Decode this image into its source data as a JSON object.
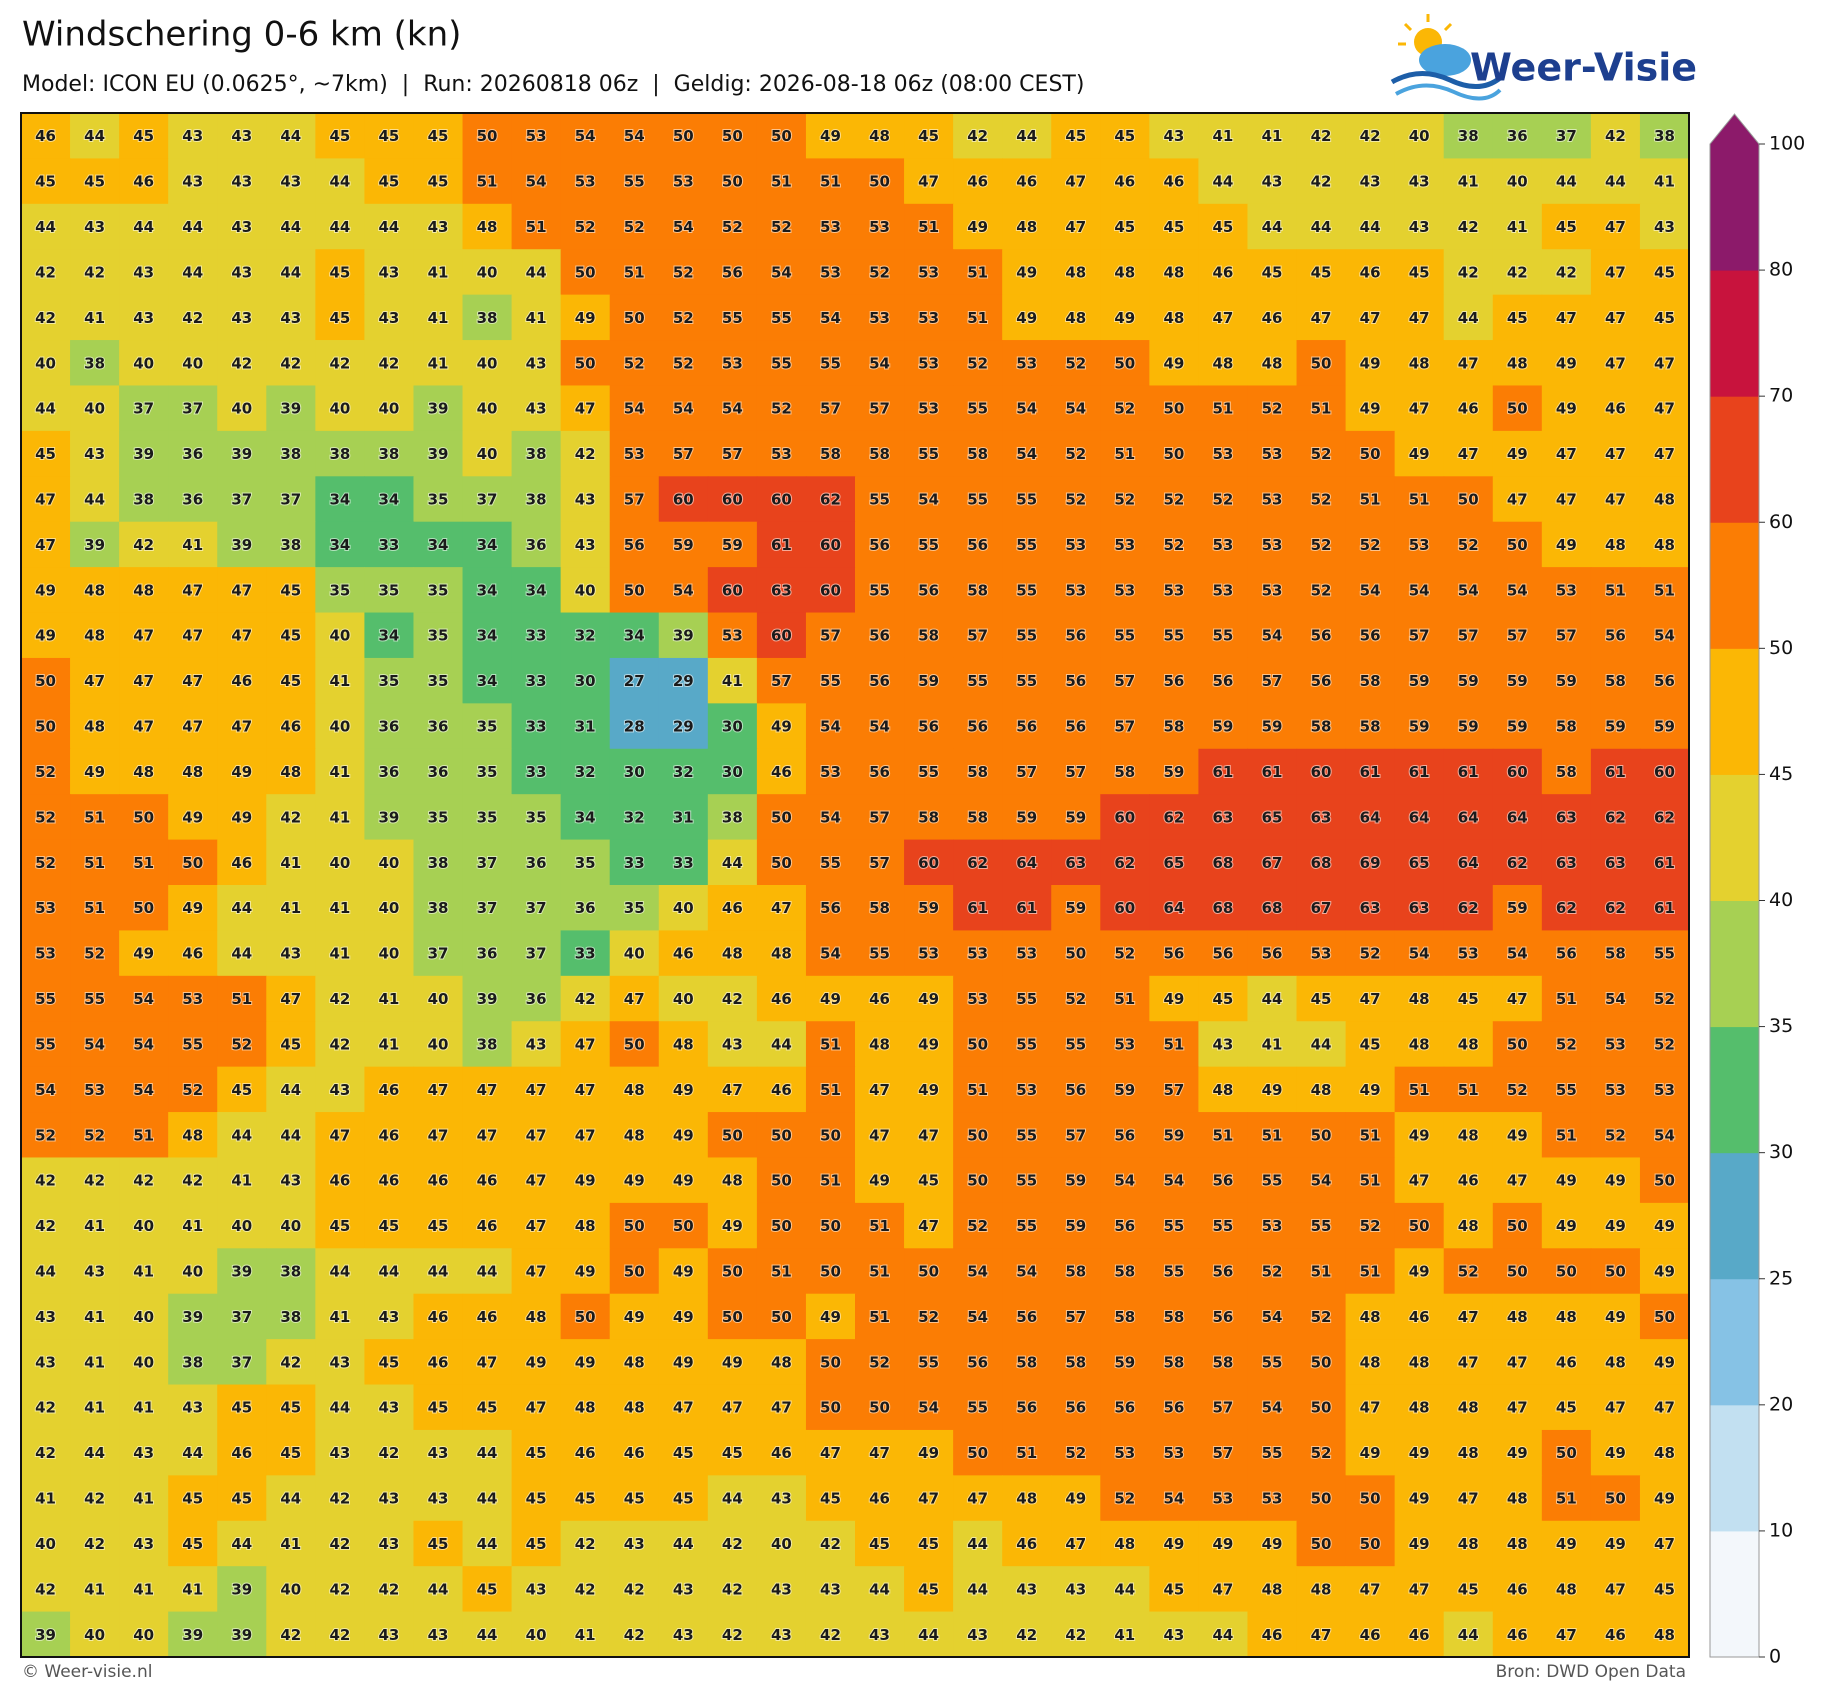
{
  "header": {
    "title": "Windschering 0-6 km (kn)",
    "subtitle": "Model: ICON EU (0.0625°, ~7km)  |  Run: 20260818 06z  |  Geldig: 2026-08-18 06z (08:00 CEST)",
    "logo": "Weer-Visie"
  },
  "map": {
    "values": [
      [
        46,
        44,
        45,
        43,
        43,
        44,
        45,
        45,
        45,
        50,
        53,
        54,
        54,
        50,
        50,
        50,
        49,
        48,
        45,
        42,
        44,
        45,
        45,
        43,
        41,
        41,
        42,
        42,
        40,
        38,
        36,
        37,
        42,
        38
      ],
      [
        45,
        45,
        46,
        43,
        43,
        43,
        44,
        45,
        45,
        51,
        54,
        53,
        55,
        53,
        50,
        51,
        51,
        50,
        47,
        46,
        46,
        47,
        46,
        46,
        44,
        43,
        42,
        43,
        43,
        41,
        40,
        44,
        44,
        41
      ],
      [
        44,
        43,
        44,
        44,
        43,
        44,
        44,
        44,
        43,
        48,
        51,
        52,
        52,
        54,
        52,
        52,
        53,
        53,
        51,
        49,
        48,
        47,
        45,
        45,
        45,
        44,
        44,
        44,
        43,
        42,
        41,
        45,
        47,
        43
      ],
      [
        42,
        42,
        43,
        44,
        43,
        44,
        45,
        43,
        41,
        40,
        44,
        50,
        51,
        52,
        56,
        54,
        53,
        52,
        53,
        51,
        49,
        48,
        48,
        48,
        46,
        45,
        45,
        46,
        45,
        42,
        42,
        42,
        47,
        45
      ],
      [
        42,
        41,
        43,
        42,
        43,
        43,
        45,
        43,
        41,
        38,
        41,
        49,
        50,
        52,
        55,
        55,
        54,
        53,
        53,
        51,
        49,
        48,
        49,
        48,
        47,
        46,
        47,
        47,
        47,
        44,
        45,
        47,
        47,
        45
      ],
      [
        40,
        38,
        40,
        40,
        42,
        42,
        42,
        42,
        41,
        40,
        43,
        50,
        52,
        52,
        53,
        55,
        55,
        54,
        53,
        52,
        53,
        52,
        50,
        49,
        48,
        48,
        50,
        49,
        48,
        47,
        48,
        49,
        47,
        47
      ],
      [
        44,
        40,
        37,
        37,
        40,
        39,
        40,
        40,
        39,
        40,
        43,
        47,
        54,
        54,
        54,
        52,
        57,
        57,
        53,
        55,
        54,
        54,
        52,
        50,
        51,
        52,
        51,
        49,
        47,
        46,
        50,
        49,
        46,
        47
      ],
      [
        45,
        43,
        39,
        36,
        39,
        38,
        38,
        38,
        39,
        40,
        38,
        42,
        53,
        57,
        57,
        53,
        58,
        58,
        55,
        58,
        54,
        52,
        51,
        50,
        53,
        53,
        52,
        50,
        49,
        47,
        49,
        47,
        47,
        47
      ],
      [
        47,
        44,
        38,
        36,
        37,
        37,
        34,
        34,
        35,
        37,
        38,
        43,
        57,
        60,
        60,
        60,
        62,
        55,
        54,
        55,
        55,
        52,
        52,
        52,
        52,
        53,
        52,
        51,
        51,
        50,
        47,
        47,
        47,
        48
      ],
      [
        47,
        39,
        42,
        41,
        39,
        38,
        34,
        33,
        34,
        34,
        36,
        43,
        56,
        59,
        59,
        61,
        60,
        56,
        55,
        56,
        55,
        53,
        53,
        52,
        53,
        53,
        52,
        52,
        53,
        52,
        50,
        49,
        48,
        48
      ],
      [
        49,
        48,
        48,
        47,
        47,
        45,
        35,
        35,
        35,
        34,
        34,
        40,
        50,
        54,
        60,
        63,
        60,
        55,
        56,
        58,
        55,
        53,
        53,
        53,
        53,
        53,
        52,
        54,
        54,
        54,
        54,
        53,
        51,
        51
      ],
      [
        49,
        48,
        47,
        47,
        47,
        45,
        40,
        34,
        35,
        34,
        33,
        32,
        34,
        39,
        53,
        60,
        57,
        56,
        58,
        57,
        55,
        56,
        55,
        55,
        55,
        54,
        56,
        56,
        57,
        57,
        57,
        57,
        56,
        54
      ],
      [
        50,
        47,
        47,
        47,
        46,
        45,
        41,
        35,
        35,
        34,
        33,
        30,
        27,
        29,
        41,
        57,
        55,
        56,
        59,
        55,
        55,
        56,
        57,
        56,
        56,
        57,
        56,
        58,
        59,
        59,
        59,
        59,
        58,
        56
      ],
      [
        50,
        48,
        47,
        47,
        47,
        46,
        40,
        36,
        36,
        35,
        33,
        31,
        28,
        29,
        30,
        49,
        54,
        54,
        56,
        56,
        56,
        56,
        57,
        58,
        59,
        59,
        58,
        58,
        59,
        59,
        59,
        58,
        59,
        59
      ],
      [
        52,
        49,
        48,
        48,
        49,
        48,
        41,
        36,
        36,
        35,
        33,
        32,
        30,
        32,
        30,
        46,
        53,
        56,
        55,
        58,
        57,
        57,
        58,
        59,
        61,
        61,
        60,
        61,
        61,
        61,
        60,
        58,
        61,
        60
      ],
      [
        52,
        51,
        50,
        49,
        49,
        42,
        41,
        39,
        35,
        35,
        35,
        34,
        32,
        31,
        38,
        50,
        54,
        57,
        58,
        58,
        59,
        59,
        60,
        62,
        63,
        65,
        63,
        64,
        64,
        64,
        64,
        63,
        62,
        62
      ],
      [
        52,
        51,
        51,
        50,
        46,
        41,
        40,
        40,
        38,
        37,
        36,
        35,
        33,
        33,
        44,
        50,
        55,
        57,
        60,
        62,
        64,
        63,
        62,
        65,
        68,
        67,
        68,
        69,
        65,
        64,
        62,
        63,
        63,
        61
      ],
      [
        53,
        51,
        50,
        49,
        44,
        41,
        41,
        40,
        38,
        37,
        37,
        36,
        35,
        40,
        46,
        47,
        56,
        58,
        59,
        61,
        61,
        59,
        60,
        64,
        68,
        68,
        67,
        63,
        63,
        62,
        59,
        62,
        62,
        61
      ],
      [
        53,
        52,
        49,
        46,
        44,
        43,
        41,
        40,
        37,
        36,
        37,
        33,
        40,
        46,
        48,
        48,
        54,
        55,
        53,
        53,
        53,
        50,
        52,
        56,
        56,
        56,
        53,
        52,
        54,
        53,
        54,
        56,
        58,
        55
      ],
      [
        55,
        55,
        54,
        53,
        51,
        47,
        42,
        41,
        40,
        39,
        36,
        42,
        47,
        40,
        42,
        46,
        49,
        46,
        49,
        53,
        55,
        52,
        51,
        49,
        45,
        44,
        45,
        47,
        48,
        45,
        47,
        51,
        54,
        52
      ],
      [
        55,
        54,
        54,
        55,
        52,
        45,
        42,
        41,
        40,
        38,
        43,
        47,
        50,
        48,
        43,
        44,
        51,
        48,
        49,
        50,
        55,
        55,
        53,
        51,
        43,
        41,
        44,
        45,
        48,
        48,
        50,
        52,
        53,
        52
      ],
      [
        54,
        53,
        54,
        52,
        45,
        44,
        43,
        46,
        47,
        47,
        47,
        47,
        48,
        49,
        47,
        46,
        51,
        47,
        49,
        51,
        53,
        56,
        59,
        57,
        48,
        49,
        48,
        49,
        51,
        51,
        52,
        55,
        53,
        53
      ],
      [
        52,
        52,
        51,
        48,
        44,
        44,
        47,
        46,
        47,
        47,
        47,
        47,
        48,
        49,
        50,
        50,
        50,
        47,
        47,
        50,
        55,
        57,
        56,
        59,
        51,
        51,
        50,
        51,
        49,
        48,
        49,
        51,
        52,
        54
      ],
      [
        42,
        42,
        42,
        42,
        41,
        43,
        46,
        46,
        46,
        46,
        47,
        49,
        49,
        49,
        48,
        50,
        51,
        49,
        45,
        50,
        55,
        59,
        54,
        54,
        56,
        55,
        54,
        51,
        47,
        46,
        47,
        49,
        49,
        50
      ],
      [
        42,
        41,
        40,
        41,
        40,
        40,
        45,
        45,
        45,
        46,
        47,
        48,
        50,
        50,
        49,
        50,
        50,
        51,
        47,
        52,
        55,
        59,
        56,
        55,
        55,
        53,
        55,
        52,
        50,
        48,
        50,
        49,
        49,
        49
      ],
      [
        44,
        43,
        41,
        40,
        39,
        38,
        44,
        44,
        44,
        44,
        47,
        49,
        50,
        49,
        50,
        51,
        50,
        51,
        50,
        54,
        54,
        58,
        58,
        55,
        56,
        52,
        51,
        51,
        49,
        52,
        50,
        50,
        50,
        49
      ],
      [
        43,
        41,
        40,
        39,
        37,
        38,
        41,
        43,
        46,
        46,
        48,
        50,
        49,
        49,
        50,
        50,
        49,
        51,
        52,
        54,
        56,
        57,
        58,
        58,
        56,
        54,
        52,
        48,
        46,
        47,
        48,
        48,
        49,
        50
      ],
      [
        43,
        41,
        40,
        38,
        37,
        42,
        43,
        45,
        46,
        47,
        49,
        49,
        48,
        49,
        49,
        48,
        50,
        52,
        55,
        56,
        58,
        58,
        59,
        58,
        58,
        55,
        50,
        48,
        48,
        47,
        47,
        46,
        48,
        49
      ],
      [
        42,
        41,
        41,
        43,
        45,
        45,
        44,
        43,
        45,
        45,
        47,
        48,
        48,
        47,
        47,
        47,
        50,
        50,
        54,
        55,
        56,
        56,
        56,
        56,
        57,
        54,
        50,
        47,
        48,
        48,
        47,
        45,
        47,
        47
      ],
      [
        42,
        44,
        43,
        44,
        46,
        45,
        43,
        42,
        43,
        44,
        45,
        46,
        46,
        45,
        45,
        46,
        47,
        47,
        49,
        50,
        51,
        52,
        53,
        53,
        57,
        55,
        52,
        49,
        49,
        48,
        49,
        50,
        49,
        48
      ],
      [
        41,
        42,
        41,
        45,
        45,
        44,
        42,
        43,
        43,
        44,
        45,
        45,
        45,
        45,
        44,
        43,
        45,
        46,
        47,
        47,
        48,
        49,
        52,
        54,
        53,
        53,
        50,
        50,
        49,
        47,
        48,
        51,
        50,
        49
      ],
      [
        40,
        42,
        43,
        45,
        44,
        41,
        42,
        43,
        45,
        44,
        45,
        42,
        43,
        44,
        42,
        40,
        42,
        45,
        45,
        44,
        46,
        47,
        48,
        49,
        49,
        49,
        50,
        50,
        49,
        48,
        48,
        49,
        49,
        47
      ],
      [
        42,
        41,
        41,
        41,
        39,
        40,
        42,
        42,
        44,
        45,
        43,
        42,
        42,
        43,
        42,
        43,
        43,
        44,
        45,
        44,
        43,
        43,
        44,
        45,
        47,
        48,
        48,
        47,
        47,
        45,
        46,
        48,
        47,
        45
      ],
      [
        39,
        40,
        40,
        39,
        39,
        42,
        42,
        43,
        43,
        44,
        40,
        41,
        42,
        43,
        42,
        43,
        42,
        43,
        44,
        43,
        42,
        42,
        41,
        43,
        44,
        46,
        47,
        46,
        46,
        44,
        46,
        47,
        46,
        48
      ]
    ]
  },
  "colorbar": {
    "ticks": [
      0,
      10,
      20,
      25,
      30,
      35,
      40,
      45,
      50,
      60,
      70,
      80,
      100
    ],
    "colors": [
      "#f3f7fb",
      "#c2e0f1",
      "#86c2e5",
      "#58a9c8",
      "#55be6c",
      "#a7d053",
      "#e4d12f",
      "#fbb705",
      "#fb7d04",
      "#e8431c",
      "#c8133d",
      "#8c1a6a"
    ]
  },
  "footer": {
    "credit": "© Weer-visie.nl",
    "source": "Bron: DWD Open Data"
  }
}
